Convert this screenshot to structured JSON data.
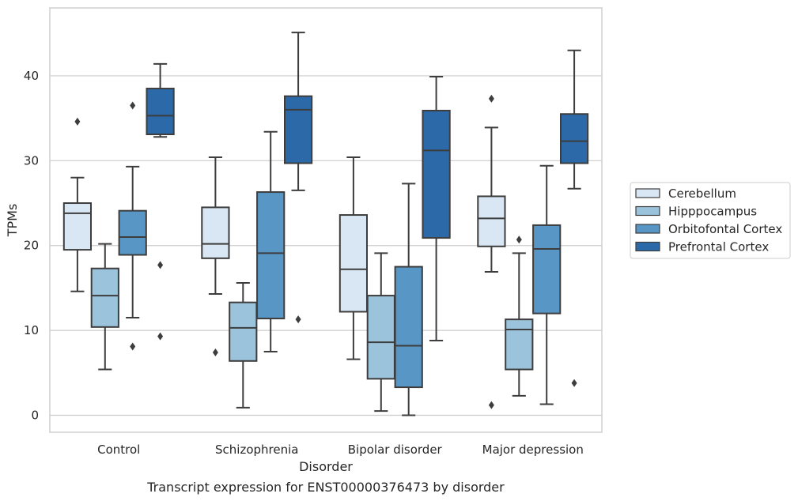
{
  "caption": "Transcript expression for ENST00000376473 by disorder",
  "chart_data": {
    "type": "boxplot",
    "xlabel": "Disorder",
    "ylabel": "TPMs",
    "ylim": [
      -2,
      48
    ],
    "yticks": [
      0,
      10,
      20,
      30,
      40
    ],
    "grid": "horizontal",
    "legend_position": "right",
    "categories": [
      "Control",
      "Schizophrenia",
      "Bipolar disorder",
      "Major depression"
    ],
    "series": [
      {
        "name": "Cerebellum",
        "color": "#d9e6f3",
        "boxes": [
          {
            "whisker_low": 14.6,
            "q1": 19.5,
            "median": 23.8,
            "q3": 25.0,
            "whisker_high": 28.0,
            "outliers": [
              34.6
            ]
          },
          {
            "whisker_low": 14.3,
            "q1": 18.5,
            "median": 20.2,
            "q3": 24.5,
            "whisker_high": 30.4,
            "outliers": [
              7.4
            ]
          },
          {
            "whisker_low": 6.6,
            "q1": 12.2,
            "median": 17.2,
            "q3": 23.6,
            "whisker_high": 30.4,
            "outliers": []
          },
          {
            "whisker_low": 16.9,
            "q1": 19.9,
            "median": 23.2,
            "q3": 25.8,
            "whisker_high": 33.9,
            "outliers": [
              37.3,
              1.2
            ]
          }
        ]
      },
      {
        "name": "Hipppocampus",
        "color": "#9cc3dc",
        "boxes": [
          {
            "whisker_low": 5.4,
            "q1": 10.4,
            "median": 14.1,
            "q3": 17.3,
            "whisker_high": 20.2,
            "outliers": []
          },
          {
            "whisker_low": 0.9,
            "q1": 6.4,
            "median": 10.3,
            "q3": 13.3,
            "whisker_high": 15.6,
            "outliers": []
          },
          {
            "whisker_low": 0.5,
            "q1": 4.3,
            "median": 8.6,
            "q3": 14.1,
            "whisker_high": 19.1,
            "outliers": []
          },
          {
            "whisker_low": 2.3,
            "q1": 5.4,
            "median": 10.1,
            "q3": 11.3,
            "whisker_high": 19.1,
            "outliers": [
              20.7
            ]
          }
        ]
      },
      {
        "name": "Orbitofontal Cortex",
        "color": "#5796c5",
        "boxes": [
          {
            "whisker_low": 11.5,
            "q1": 18.9,
            "median": 21.0,
            "q3": 24.1,
            "whisker_high": 29.3,
            "outliers": [
              36.5,
              8.1
            ]
          },
          {
            "whisker_low": 7.5,
            "q1": 11.4,
            "median": 19.1,
            "q3": 26.3,
            "whisker_high": 33.4,
            "outliers": []
          },
          {
            "whisker_low": 0.0,
            "q1": 3.3,
            "median": 8.2,
            "q3": 17.5,
            "whisker_high": 27.3,
            "outliers": []
          },
          {
            "whisker_low": 1.3,
            "q1": 12.0,
            "median": 19.6,
            "q3": 22.4,
            "whisker_high": 29.4,
            "outliers": []
          }
        ]
      },
      {
        "name": "Prefrontal Cortex",
        "color": "#2b69a9",
        "boxes": [
          {
            "whisker_low": 32.8,
            "q1": 33.1,
            "median": 35.3,
            "q3": 38.5,
            "whisker_high": 41.4,
            "outliers": [
              17.7,
              9.3
            ]
          },
          {
            "whisker_low": 26.5,
            "q1": 29.7,
            "median": 36.0,
            "q3": 37.6,
            "whisker_high": 45.1,
            "outliers": [
              11.3
            ]
          },
          {
            "whisker_low": 8.8,
            "q1": 20.9,
            "median": 31.2,
            "q3": 35.9,
            "whisker_high": 39.9,
            "outliers": []
          },
          {
            "whisker_low": 26.7,
            "q1": 29.7,
            "median": 32.3,
            "q3": 35.5,
            "whisker_high": 43.0,
            "outliers": [
              3.8
            ]
          }
        ]
      }
    ]
  }
}
